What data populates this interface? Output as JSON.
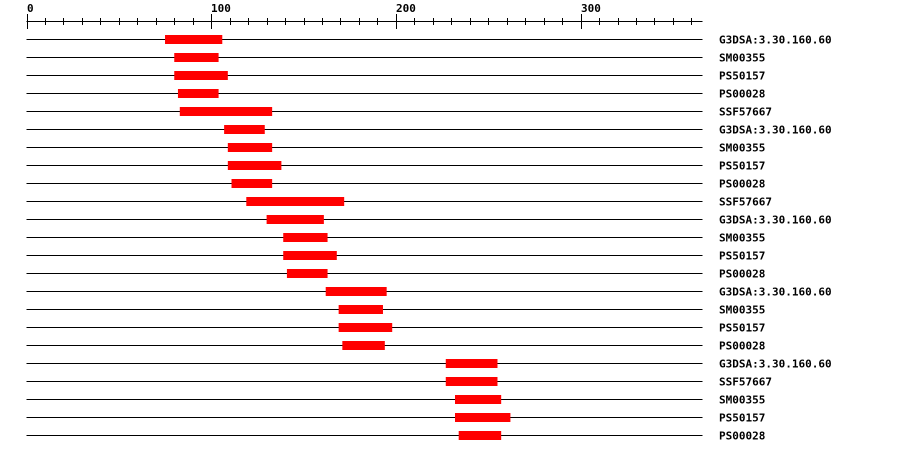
{
  "chart_data": {
    "type": "domain-map",
    "axis": {
      "min": 0,
      "max": 366,
      "major_ticks": [
        0,
        100,
        200,
        300
      ],
      "minor_step": 10
    },
    "bar_color": "#ff0000",
    "tracks": [
      {
        "label": "G3DSA:3.30.160.60",
        "start": 75,
        "end": 106
      },
      {
        "label": "SM00355",
        "start": 80,
        "end": 104
      },
      {
        "label": "PS50157",
        "start": 80,
        "end": 109
      },
      {
        "label": "PS00028",
        "start": 82,
        "end": 104
      },
      {
        "label": "SSF57667",
        "start": 83,
        "end": 133
      },
      {
        "label": "G3DSA:3.30.160.60",
        "start": 107,
        "end": 129
      },
      {
        "label": "SM00355",
        "start": 109,
        "end": 133
      },
      {
        "label": "PS50157",
        "start": 109,
        "end": 138
      },
      {
        "label": "PS00028",
        "start": 111,
        "end": 133
      },
      {
        "label": "SSF57667",
        "start": 119,
        "end": 172
      },
      {
        "label": "G3DSA:3.30.160.60",
        "start": 130,
        "end": 161
      },
      {
        "label": "SM00355",
        "start": 139,
        "end": 163
      },
      {
        "label": "PS50157",
        "start": 139,
        "end": 168
      },
      {
        "label": "PS00028",
        "start": 141,
        "end": 163
      },
      {
        "label": "G3DSA:3.30.160.60",
        "start": 162,
        "end": 195
      },
      {
        "label": "SM00355",
        "start": 169,
        "end": 193
      },
      {
        "label": "PS50157",
        "start": 169,
        "end": 198
      },
      {
        "label": "PS00028",
        "start": 171,
        "end": 194
      },
      {
        "label": "G3DSA:3.30.160.60",
        "start": 227,
        "end": 255
      },
      {
        "label": "SSF57667",
        "start": 227,
        "end": 255
      },
      {
        "label": "SM00355",
        "start": 232,
        "end": 257
      },
      {
        "label": "PS50157",
        "start": 232,
        "end": 262
      },
      {
        "label": "PS00028",
        "start": 234,
        "end": 257
      }
    ]
  }
}
